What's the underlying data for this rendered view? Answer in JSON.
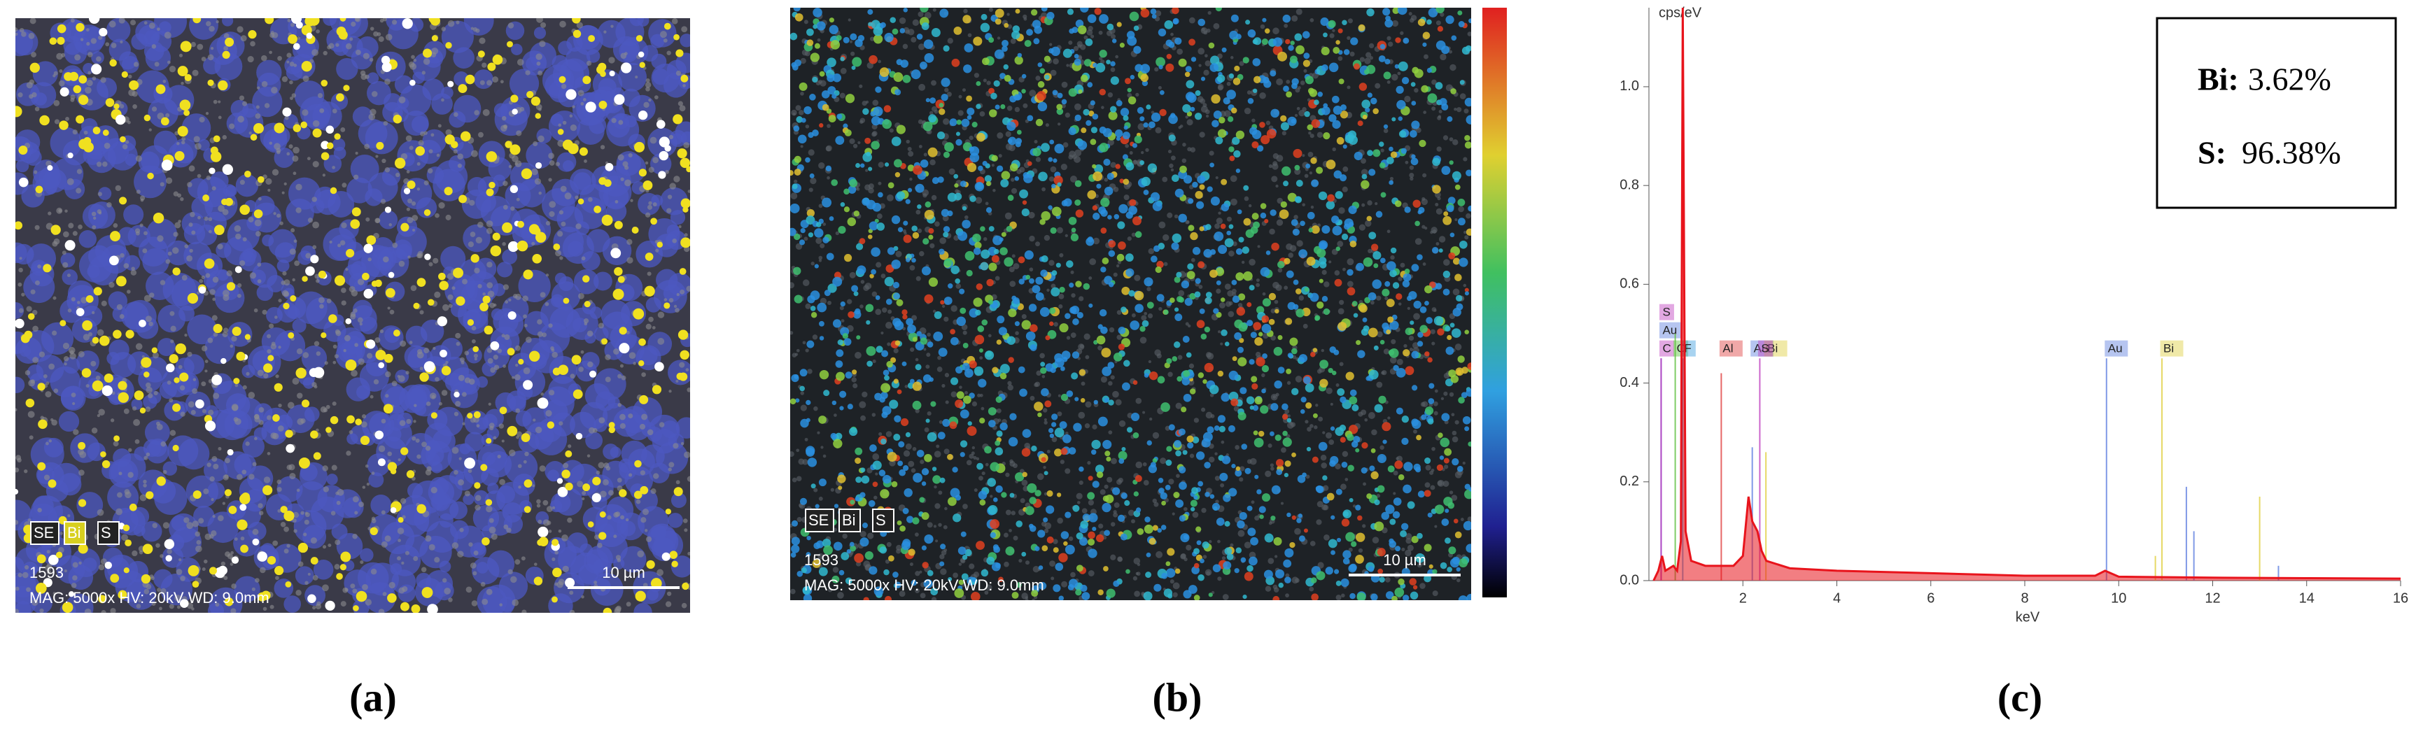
{
  "panels": [
    {
      "label": "(a)",
      "legend": [
        "SE",
        "Bi",
        "S"
      ],
      "id_text": "1593",
      "info": "MAG: 5000x HV: 20kV WD: 9.0mm",
      "scale_bar": "10 µm"
    },
    {
      "label": "(b)",
      "legend": [
        "SE",
        "Bi",
        "S"
      ],
      "id_text": "1593",
      "info": "MAG: 5000x HV: 20kV WD: 9.0mm",
      "scale_bar": "10 µm"
    },
    {
      "label": "(c)"
    }
  ],
  "chart_data": {
    "type": "line",
    "x_label": "keV",
    "y_label": "cps/eV",
    "xlim": [
      0,
      16
    ],
    "ylim": [
      0,
      1.16
    ],
    "xticks": [
      2,
      4,
      6,
      8,
      10,
      12,
      14,
      16
    ],
    "yticks": [
      {
        "value": 0,
        "label": "0.0"
      },
      {
        "value": 0.2,
        "label": "0.2"
      },
      {
        "value": 0.4,
        "label": "0.4"
      },
      {
        "value": 0.6,
        "label": "0.6"
      },
      {
        "value": 0.8,
        "label": "0.8"
      },
      {
        "value": 1,
        "label": "1.0"
      }
    ],
    "series": [
      {
        "color": "#e8141c",
        "x": [
          0.1,
          0.2,
          0.28,
          0.35,
          0.52,
          0.6,
          0.68,
          0.72,
          0.78,
          0.9,
          1.2,
          1.49,
          1.8,
          2.0,
          2.12,
          2.2,
          2.31,
          2.4,
          2.5,
          3,
          4,
          6,
          8,
          9.5,
          9.71,
          10,
          12,
          14,
          16
        ],
        "values": [
          0,
          0.02,
          0.05,
          0.02,
          0.03,
          0.02,
          0.08,
          1.16,
          0.1,
          0.04,
          0.03,
          0.03,
          0.03,
          0.05,
          0.17,
          0.12,
          0.1,
          0.06,
          0.04,
          0.025,
          0.02,
          0.015,
          0.01,
          0.01,
          0.02,
          0.008,
          0.006,
          0.005,
          0.004
        ]
      }
    ],
    "peaks": [
      {
        "label": "C",
        "x": 0.26,
        "height": 0.45,
        "color": "#c040c0"
      },
      {
        "label": "Au",
        "x": 0.26,
        "height": 0.45,
        "color": "#6080e0"
      },
      {
        "label": "S",
        "x": 0.26,
        "height": 0.45,
        "color": "#c040c0"
      },
      {
        "label": "O",
        "x": 0.56,
        "height": 0.5,
        "color": "#60c040"
      },
      {
        "label": "F",
        "x": 0.72,
        "height": 0.45,
        "color": "#40a0e0"
      },
      {
        "label": "Al",
        "x": 1.54,
        "height": 0.42,
        "color": "#e04040"
      },
      {
        "label": "Au",
        "x": 2.2,
        "height": 0.27,
        "color": "#6080e0"
      },
      {
        "label": "Bi",
        "x": 2.49,
        "height": 0.26,
        "color": "#e0d040"
      },
      {
        "label": "S",
        "x": 2.36,
        "height": 0.45,
        "color": "#c040c0"
      },
      {
        "label": "Au",
        "x": 9.74,
        "height": 0.45,
        "color": "#6080e0"
      },
      {
        "label": "Bi",
        "x": 10.92,
        "height": 0.45,
        "color": "#e0d040"
      },
      {
        "x": 11.44,
        "height": 0.19,
        "color": "#6080e0"
      },
      {
        "x": 11.6,
        "height": 0.1,
        "color": "#6080e0"
      },
      {
        "x": 10.78,
        "height": 0.05,
        "color": "#e0d040"
      },
      {
        "x": 13.0,
        "height": 0.17,
        "color": "#e0d040"
      },
      {
        "x": 13.4,
        "height": 0.03,
        "color": "#6080e0"
      }
    ],
    "composition": [
      {
        "element": "Bi:",
        "amount": "3.62%"
      },
      {
        "element": "S:",
        "amount": "96.38%"
      }
    ]
  }
}
